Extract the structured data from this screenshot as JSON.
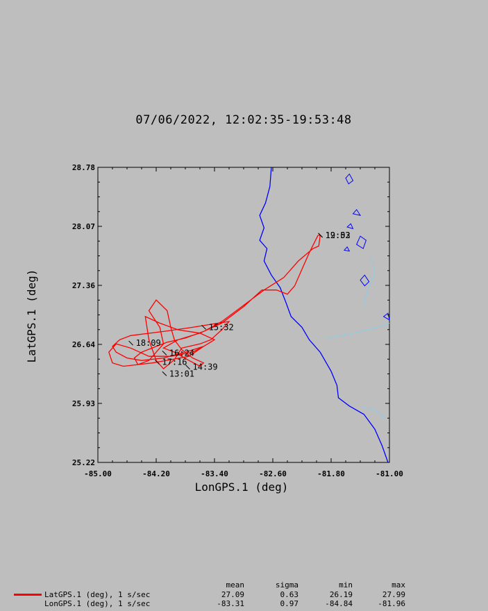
{
  "title": "07/06/2022, 12:02:35-19:53:48",
  "chart_data": {
    "type": "line",
    "title": "07/06/2022, 12:02:35-19:53:48",
    "xlabel": "LonGPS.1 (deg)",
    "ylabel": "LatGPS.1 (deg)",
    "xlim": [
      -85.0,
      -81.0
    ],
    "ylim": [
      25.22,
      28.78
    ],
    "x_ticks": [
      "-85.00",
      "-84.20",
      "-83.40",
      "-82.60",
      "-81.80",
      "-81.00"
    ],
    "y_ticks": [
      "25.22",
      "25.93",
      "26.64",
      "27.36",
      "28.07",
      "28.78"
    ],
    "grid": false,
    "series": [
      {
        "name": "LatGPS.1 (deg), 1 s/sec",
        "color": "#ff0000",
        "points": [
          [
            -81.98,
            27.96
          ],
          [
            -81.95,
            27.96
          ],
          [
            -81.97,
            27.83
          ],
          [
            -82.05,
            27.8
          ],
          [
            -82.25,
            27.65
          ],
          [
            -82.45,
            27.45
          ],
          [
            -82.72,
            27.3
          ],
          [
            -83.1,
            27.05
          ],
          [
            -83.3,
            26.92
          ],
          [
            -83.55,
            26.8
          ],
          [
            -83.8,
            26.72
          ],
          [
            -84.05,
            26.67
          ],
          [
            -84.2,
            26.62
          ],
          [
            -84.4,
            26.55
          ],
          [
            -84.5,
            26.48
          ],
          [
            -84.45,
            26.4
          ],
          [
            -84.25,
            26.42
          ],
          [
            -84.0,
            26.46
          ],
          [
            -83.75,
            26.5
          ],
          [
            -83.55,
            26.62
          ],
          [
            -83.4,
            26.7
          ],
          [
            -83.6,
            26.78
          ],
          [
            -83.9,
            26.82
          ],
          [
            -84.15,
            26.9
          ],
          [
            -84.35,
            26.98
          ],
          [
            -84.3,
            26.7
          ],
          [
            -84.2,
            26.45
          ],
          [
            -84.1,
            26.35
          ],
          [
            -83.95,
            26.46
          ],
          [
            -83.85,
            26.6
          ],
          [
            -83.6,
            26.65
          ],
          [
            -83.45,
            26.7
          ],
          [
            -83.3,
            26.82
          ],
          [
            -83.2,
            26.92
          ],
          [
            -83.35,
            26.9
          ],
          [
            -83.7,
            26.85
          ],
          [
            -84.1,
            26.8
          ],
          [
            -84.55,
            26.75
          ],
          [
            -84.7,
            26.7
          ],
          [
            -84.8,
            26.62
          ],
          [
            -84.75,
            26.55
          ],
          [
            -84.6,
            26.48
          ],
          [
            -84.4,
            26.45
          ],
          [
            -84.1,
            26.48
          ],
          [
            -83.8,
            26.55
          ],
          [
            -83.55,
            26.62
          ],
          [
            -83.7,
            26.55
          ],
          [
            -84.0,
            26.5
          ],
          [
            -84.3,
            26.5
          ],
          [
            -84.55,
            26.6
          ],
          [
            -84.75,
            26.65
          ],
          [
            -84.85,
            26.55
          ],
          [
            -84.8,
            26.42
          ],
          [
            -84.65,
            26.38
          ],
          [
            -84.45,
            26.4
          ],
          [
            -84.3,
            26.45
          ],
          [
            -84.2,
            26.55
          ],
          [
            -84.1,
            26.65
          ],
          [
            -84.15,
            26.85
          ],
          [
            -84.3,
            27.05
          ],
          [
            -84.2,
            27.18
          ],
          [
            -84.05,
            27.05
          ],
          [
            -84.0,
            26.85
          ],
          [
            -83.95,
            26.7
          ],
          [
            -83.85,
            26.58
          ],
          [
            -83.7,
            26.48
          ],
          [
            -83.55,
            26.42
          ],
          [
            -83.6,
            26.38
          ],
          [
            -83.75,
            26.45
          ],
          [
            -83.95,
            26.55
          ],
          [
            -84.1,
            26.6
          ],
          [
            -83.9,
            26.7
          ],
          [
            -83.6,
            26.78
          ],
          [
            -83.3,
            26.9
          ],
          [
            -83.0,
            27.1
          ],
          [
            -82.75,
            27.3
          ],
          [
            -82.55,
            27.3
          ],
          [
            -82.4,
            27.25
          ],
          [
            -82.3,
            27.35
          ],
          [
            -82.2,
            27.55
          ],
          [
            -82.1,
            27.75
          ],
          [
            -81.98,
            27.96
          ]
        ]
      },
      {
        "name": "LonGPS.1 (deg), 1 s/sec"
      }
    ],
    "annotations": [
      {
        "text": "12:02",
        "x": -81.88,
        "y": 27.96
      },
      {
        "text": "19:53",
        "x": -81.88,
        "y": 27.96
      },
      {
        "text": "15:32",
        "x": -83.48,
        "y": 26.85
      },
      {
        "text": "18:09",
        "x": -84.48,
        "y": 26.66
      },
      {
        "text": "16:24",
        "x": -84.02,
        "y": 26.54
      },
      {
        "text": "17:16",
        "x": -84.12,
        "y": 26.43
      },
      {
        "text": "14:39",
        "x": -83.7,
        "y": 26.37
      },
      {
        "text": "13:01",
        "x": -84.02,
        "y": 26.29
      }
    ]
  },
  "legend": {
    "headers": [
      "mean",
      "sigma",
      "min",
      "max"
    ],
    "rows": [
      {
        "label": "LatGPS.1 (deg), 1 s/sec",
        "mean": "27.09",
        "sigma": "0.63",
        "min": "26.19",
        "max": "27.99"
      },
      {
        "label": "LonGPS.1 (deg), 1 s/sec",
        "mean": "-83.31",
        "sigma": "0.97",
        "min": "-84.84",
        "max": "-81.96"
      }
    ]
  },
  "colors": {
    "background": "#bebebe",
    "track": "#ff0000",
    "coastline": "#0000ff",
    "river": "#87ceeb"
  },
  "coastline": [
    [
      -82.62,
      28.78
    ],
    [
      -82.64,
      28.55
    ],
    [
      -82.7,
      28.35
    ],
    [
      -82.78,
      28.2
    ],
    [
      -82.72,
      28.05
    ],
    [
      -82.78,
      27.9
    ],
    [
      -82.68,
      27.8
    ],
    [
      -82.72,
      27.65
    ],
    [
      -82.62,
      27.48
    ],
    [
      -82.5,
      27.33
    ],
    [
      -82.42,
      27.15
    ],
    [
      -82.35,
      26.98
    ],
    [
      -82.2,
      26.85
    ],
    [
      -82.1,
      26.7
    ],
    [
      -81.95,
      26.55
    ],
    [
      -81.8,
      26.32
    ],
    [
      -81.72,
      26.15
    ],
    [
      -81.7,
      26.0
    ],
    [
      -81.55,
      25.9
    ],
    [
      -81.35,
      25.8
    ],
    [
      -81.2,
      25.62
    ],
    [
      -81.1,
      25.42
    ],
    [
      -81.02,
      25.22
    ]
  ],
  "rivers": [
    [
      [
        -81.85,
        26.72
      ],
      [
        -81.6,
        26.76
      ],
      [
        -81.4,
        26.8
      ],
      [
        -81.15,
        26.85
      ],
      [
        -81.0,
        26.9
      ]
    ],
    [
      [
        -81.35,
        27.1
      ],
      [
        -81.3,
        27.3
      ],
      [
        -81.2,
        27.5
      ],
      [
        -81.25,
        27.7
      ]
    ],
    [
      [
        -81.4,
        25.9
      ],
      [
        -81.2,
        25.85
      ],
      [
        -81.05,
        25.75
      ]
    ]
  ],
  "lakes": [
    [
      [
        -81.6,
        28.65
      ],
      [
        -81.55,
        28.7
      ],
      [
        -81.5,
        28.62
      ],
      [
        -81.56,
        28.58
      ]
    ],
    [
      [
        -81.45,
        27.85
      ],
      [
        -81.4,
        27.95
      ],
      [
        -81.32,
        27.9
      ],
      [
        -81.36,
        27.8
      ]
    ],
    [
      [
        -81.4,
        27.42
      ],
      [
        -81.34,
        27.48
      ],
      [
        -81.28,
        27.4
      ],
      [
        -81.34,
        27.35
      ]
    ],
    [
      [
        -81.58,
        28.06
      ],
      [
        -81.53,
        28.1
      ],
      [
        -81.5,
        28.04
      ]
    ],
    [
      [
        -81.5,
        28.22
      ],
      [
        -81.45,
        28.27
      ],
      [
        -81.4,
        28.2
      ]
    ],
    [
      [
        -81.08,
        26.98
      ],
      [
        -81.02,
        27.02
      ],
      [
        -81.0,
        26.94
      ]
    ],
    [
      [
        -81.62,
        27.78
      ],
      [
        -81.58,
        27.82
      ],
      [
        -81.55,
        27.77
      ]
    ]
  ]
}
